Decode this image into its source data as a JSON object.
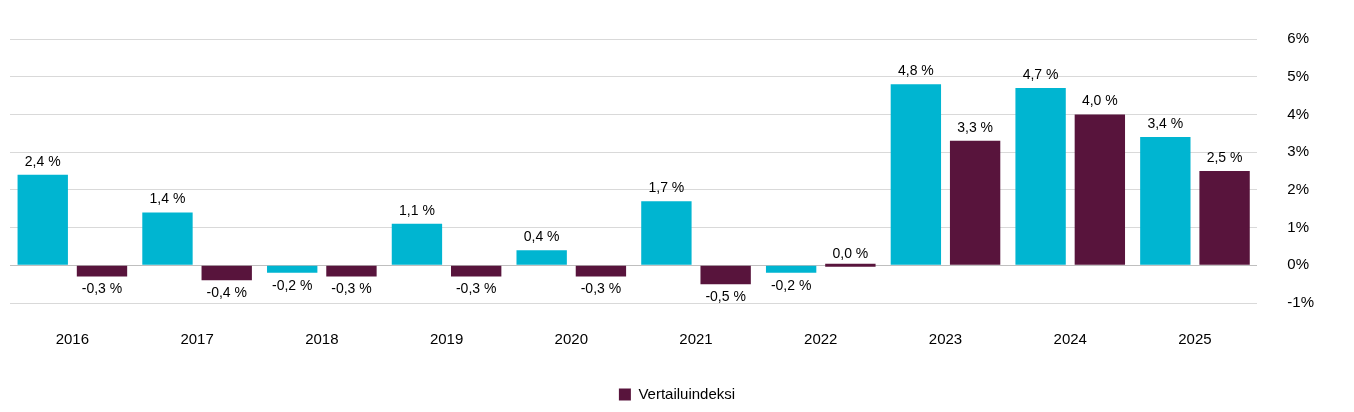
{
  "chart_data": {
    "type": "bar",
    "categories": [
      "2016",
      "2017",
      "2018",
      "2019",
      "2020",
      "2021",
      "2022",
      "2023",
      "2024",
      "2025"
    ],
    "series": [
      {
        "color": "#00b5d1",
        "values": [
          2.4,
          1.4,
          -0.2,
          1.1,
          0.4,
          1.7,
          -0.2,
          4.8,
          4.7,
          3.4
        ],
        "value_labels": [
          "2,4 %",
          "1,4 %",
          "-0,2 %",
          "1,1 %",
          "0,4 %",
          "1,7 %",
          "-0,2 %",
          "4,8 %",
          "4,7 %",
          "3,4 %"
        ]
      },
      {
        "name": "Vertailuindeksi",
        "color": "#58143c",
        "values": [
          -0.3,
          -0.4,
          -0.3,
          -0.3,
          -0.3,
          -0.5,
          0.0,
          3.3,
          4.0,
          2.5
        ],
        "value_labels": [
          "-0,3 %",
          "-0,4 %",
          "-0,3 %",
          "-0,3 %",
          "-0,3 %",
          "-0,5 %",
          "0,0 %",
          "3,3 %",
          "4,0 %",
          "2,5 %"
        ]
      }
    ],
    "ylim": [
      -1,
      6
    ],
    "yticks": [
      {
        "value": -1,
        "label": "-1%"
      },
      {
        "value": 0,
        "label": "0%"
      },
      {
        "value": 1,
        "label": "1%"
      },
      {
        "value": 2,
        "label": "2%"
      },
      {
        "value": 3,
        "label": "3%"
      },
      {
        "value": 4,
        "label": "4%"
      },
      {
        "value": 5,
        "label": "5%"
      },
      {
        "value": 6,
        "label": "6%"
      }
    ],
    "grid": "y",
    "legend": "bottom"
  }
}
